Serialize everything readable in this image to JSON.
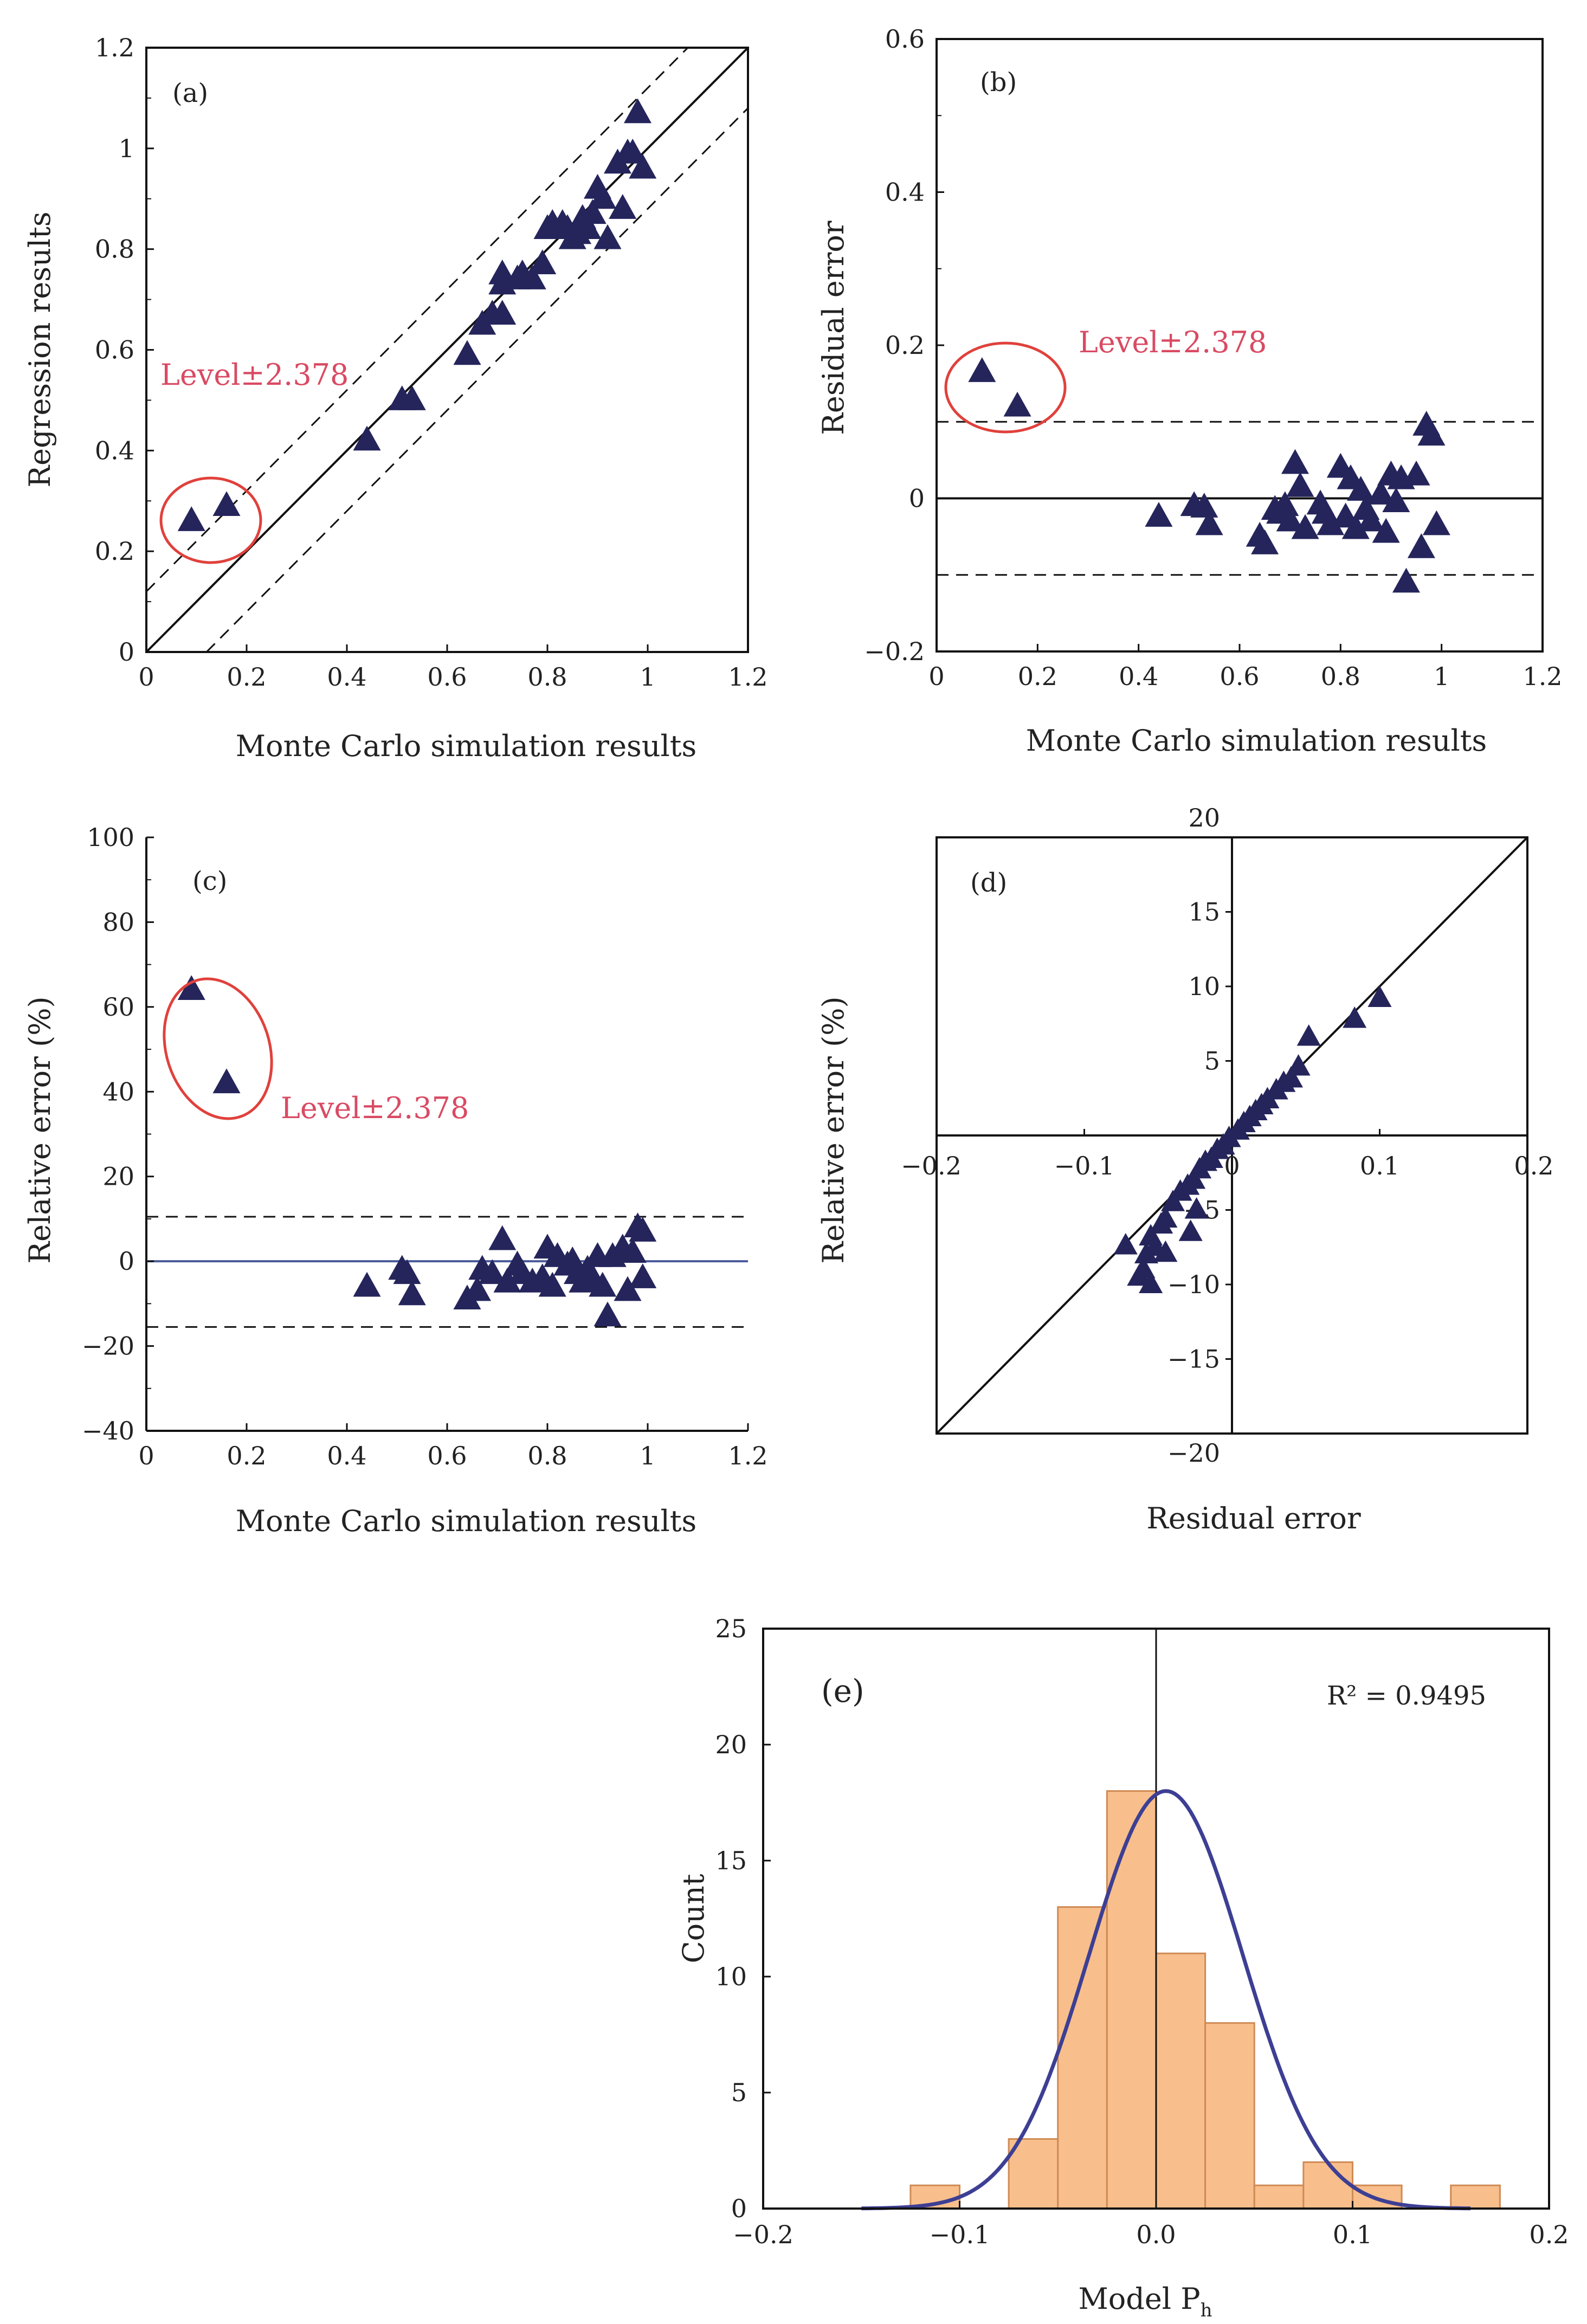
{
  "chart_data": [
    {
      "panel": "(a)",
      "type": "scatter",
      "xlabel": "Monte Carlo simulation results",
      "ylabel": "Regression results",
      "xlim": [
        0,
        1.2
      ],
      "ylim": [
        0,
        1.2
      ],
      "xticks": [
        "0",
        "0.2",
        "0.4",
        "0.6",
        "0.8",
        "1",
        "1.2"
      ],
      "yticks": [
        "0",
        "0.2",
        "0.4",
        "0.6",
        "0.8",
        "1",
        "1.2"
      ],
      "reference_lines": [
        {
          "style": "solid",
          "from": [
            0,
            0
          ],
          "to": [
            1.2,
            1.2
          ]
        },
        {
          "style": "dashed",
          "from": [
            0,
            0.12
          ],
          "to": [
            1.08,
            1.2
          ]
        },
        {
          "style": "dashed",
          "from": [
            0.12,
            0
          ],
          "to": [
            1.2,
            1.08
          ]
        }
      ],
      "annotation": "Level±2.378",
      "points": [
        [
          0.09,
          0.26
        ],
        [
          0.16,
          0.29
        ],
        [
          0.44,
          0.42
        ],
        [
          0.51,
          0.5
        ],
        [
          0.53,
          0.5
        ],
        [
          0.64,
          0.59
        ],
        [
          0.67,
          0.65
        ],
        [
          0.69,
          0.67
        ],
        [
          0.71,
          0.67
        ],
        [
          0.71,
          0.73
        ],
        [
          0.71,
          0.75
        ],
        [
          0.74,
          0.74
        ],
        [
          0.75,
          0.75
        ],
        [
          0.77,
          0.74
        ],
        [
          0.79,
          0.77
        ],
        [
          0.8,
          0.84
        ],
        [
          0.81,
          0.85
        ],
        [
          0.83,
          0.85
        ],
        [
          0.84,
          0.84
        ],
        [
          0.85,
          0.82
        ],
        [
          0.86,
          0.83
        ],
        [
          0.87,
          0.86
        ],
        [
          0.88,
          0.84
        ],
        [
          0.89,
          0.87
        ],
        [
          0.9,
          0.92
        ],
        [
          0.91,
          0.9
        ],
        [
          0.92,
          0.82
        ],
        [
          0.94,
          0.97
        ],
        [
          0.95,
          0.88
        ],
        [
          0.96,
          0.99
        ],
        [
          0.97,
          0.99
        ],
        [
          0.98,
          1.07
        ],
        [
          0.99,
          0.96
        ]
      ]
    },
    {
      "panel": "(b)",
      "type": "scatter",
      "xlabel": "Monte Carlo simulation results",
      "ylabel": "Residual error",
      "xlim": [
        0,
        1.2
      ],
      "ylim": [
        -0.2,
        0.6
      ],
      "xticks": [
        "0",
        "0.2",
        "0.4",
        "0.6",
        "0.8",
        "1",
        "1.2"
      ],
      "yticks": [
        "−0.2",
        "0",
        "0.2",
        "0.4",
        "0.6"
      ],
      "reference_lines": [
        {
          "style": "solid",
          "y": 0
        },
        {
          "style": "dashed",
          "y": 0.1
        },
        {
          "style": "dashed",
          "y": -0.1
        }
      ],
      "annotation": "Level±2.378",
      "points": [
        [
          0.09,
          0.165
        ],
        [
          0.16,
          0.12
        ],
        [
          0.44,
          -0.024
        ],
        [
          0.51,
          -0.01
        ],
        [
          0.53,
          -0.012
        ],
        [
          0.54,
          -0.035
        ],
        [
          0.64,
          -0.05
        ],
        [
          0.65,
          -0.06
        ],
        [
          0.67,
          -0.015
        ],
        [
          0.68,
          -0.02
        ],
        [
          0.69,
          -0.01
        ],
        [
          0.7,
          -0.03
        ],
        [
          0.71,
          0.045
        ],
        [
          0.72,
          0.015
        ],
        [
          0.73,
          -0.04
        ],
        [
          0.76,
          -0.008
        ],
        [
          0.77,
          -0.02
        ],
        [
          0.78,
          -0.035
        ],
        [
          0.8,
          0.04
        ],
        [
          0.81,
          -0.025
        ],
        [
          0.82,
          0.025
        ],
        [
          0.83,
          -0.04
        ],
        [
          0.84,
          0.01
        ],
        [
          0.85,
          -0.015
        ],
        [
          0.86,
          -0.03
        ],
        [
          0.88,
          0.005
        ],
        [
          0.89,
          -0.045
        ],
        [
          0.9,
          0.03
        ],
        [
          0.91,
          -0.005
        ],
        [
          0.92,
          0.025
        ],
        [
          0.93,
          -0.11
        ],
        [
          0.95,
          0.03
        ],
        [
          0.96,
          -0.065
        ],
        [
          0.97,
          0.095
        ],
        [
          0.98,
          0.082
        ],
        [
          0.99,
          -0.035
        ]
      ]
    },
    {
      "panel": "(c)",
      "type": "scatter",
      "xlabel": "Monte Carlo simulation results",
      "ylabel": "Relative error (%)",
      "xlim": [
        0,
        1.2
      ],
      "ylim": [
        -40,
        100
      ],
      "xticks": [
        "0",
        "0.2",
        "0.4",
        "0.6",
        "0.8",
        "1",
        "1.2"
      ],
      "yticks": [
        "−40",
        "−20",
        "0",
        "20",
        "40",
        "60",
        "80",
        "100"
      ],
      "reference_lines": [
        {
          "style": "solid",
          "y": 0
        },
        {
          "style": "dashed",
          "y": 10.5
        },
        {
          "style": "dashed",
          "y": -15.5
        }
      ],
      "annotation": "Level±2.378",
      "points": [
        [
          0.09,
          64
        ],
        [
          0.16,
          42
        ],
        [
          0.44,
          -6
        ],
        [
          0.51,
          -2
        ],
        [
          0.52,
          -3
        ],
        [
          0.53,
          -8
        ],
        [
          0.64,
          -9
        ],
        [
          0.66,
          -7
        ],
        [
          0.67,
          -2
        ],
        [
          0.69,
          -3
        ],
        [
          0.71,
          5
        ],
        [
          0.72,
          -5
        ],
        [
          0.74,
          -1
        ],
        [
          0.75,
          -3
        ],
        [
          0.77,
          -5
        ],
        [
          0.79,
          -4
        ],
        [
          0.8,
          3
        ],
        [
          0.81,
          -6
        ],
        [
          0.82,
          1
        ],
        [
          0.84,
          -1
        ],
        [
          0.85,
          0
        ],
        [
          0.86,
          -3
        ],
        [
          0.87,
          -5
        ],
        [
          0.88,
          -2
        ],
        [
          0.89,
          -4
        ],
        [
          0.9,
          1
        ],
        [
          0.91,
          -6
        ],
        [
          0.92,
          -13
        ],
        [
          0.93,
          1
        ],
        [
          0.95,
          3
        ],
        [
          0.96,
          -7
        ],
        [
          0.97,
          2
        ],
        [
          0.98,
          8
        ],
        [
          0.99,
          7
        ],
        [
          0.99,
          -4
        ]
      ]
    },
    {
      "panel": "(d)",
      "type": "scatter",
      "xlabel": "Residual error",
      "ylabel": "Relative error (%)",
      "xlim": [
        -0.2,
        0.2
      ],
      "ylim": [
        -20,
        20
      ],
      "xticks": [
        "−0.2",
        "−0.1",
        "0",
        "0.1",
        "0.2"
      ],
      "yticks": [
        "−20",
        "−15",
        "−10",
        "−5",
        "5",
        "10",
        "15",
        "20"
      ],
      "reference_lines": [
        {
          "style": "solid",
          "from": [
            -0.2,
            -20
          ],
          "to": [
            0.2,
            20
          ]
        }
      ],
      "points": [
        [
          0.1,
          9.2
        ],
        [
          0.083,
          7.8
        ],
        [
          0.052,
          6.6
        ],
        [
          0.045,
          4.6
        ],
        [
          0.04,
          3.8
        ],
        [
          0.035,
          3.5
        ],
        [
          0.03,
          3.0
        ],
        [
          0.024,
          2.4
        ],
        [
          0.02,
          2.0
        ],
        [
          0.016,
          1.6
        ],
        [
          0.012,
          1.2
        ],
        [
          0.008,
          0.8
        ],
        [
          0.004,
          0.3
        ],
        [
          -0.002,
          -0.2
        ],
        [
          -0.006,
          -0.7
        ],
        [
          -0.01,
          -1.0
        ],
        [
          -0.014,
          -1.6
        ],
        [
          -0.018,
          -1.8
        ],
        [
          -0.022,
          -2.3
        ],
        [
          -0.026,
          -3.0
        ],
        [
          -0.03,
          -3.4
        ],
        [
          -0.024,
          -5.0
        ],
        [
          -0.028,
          -6.5
        ],
        [
          -0.035,
          -3.8
        ],
        [
          -0.04,
          -4.5
        ],
        [
          -0.045,
          -5.6
        ],
        [
          -0.048,
          -6.0
        ],
        [
          -0.052,
          -7.5
        ],
        [
          -0.055,
          -6.8
        ],
        [
          -0.058,
          -8.0
        ],
        [
          -0.06,
          -9.0
        ],
        [
          -0.063,
          -9.5
        ],
        [
          -0.055,
          -10.0
        ],
        [
          -0.072,
          -7.4
        ],
        [
          -0.045,
          -7.9
        ]
      ]
    },
    {
      "panel": "(e)",
      "type": "bar",
      "xlabel": "Model P",
      "xlabel_sub": "h",
      "ylabel": "Count",
      "xlim": [
        -0.2,
        0.2
      ],
      "ylim": [
        0,
        25
      ],
      "xticks": [
        "−0.2",
        "−0.1",
        "0.0",
        "0.1",
        "0.2"
      ],
      "yticks": [
        "0",
        "5",
        "10",
        "15",
        "20",
        "25"
      ],
      "annotation": "R² = 0.9495",
      "bin_width": 0.025,
      "bin_starts": [
        -0.125,
        -0.075,
        -0.05,
        -0.025,
        0.0,
        0.025,
        0.05,
        0.075,
        0.1,
        0.15
      ],
      "values": [
        1,
        3,
        13,
        18,
        11,
        8,
        1,
        2,
        1,
        1
      ],
      "vertical_line_x": 0,
      "fit_curve": {
        "type": "normal",
        "mean": 0.005,
        "sd": 0.0392,
        "peak": 18
      },
      "bar_color": "#f8bf8c",
      "bar_edge": "#cf8a55",
      "curve_color": "#3d3f94"
    }
  ],
  "colors": {
    "marker": "#25255c",
    "highlight": "#e0413c",
    "annotation_text": "#d94a63",
    "axis": "#111111",
    "zero_line_c": "#4a5a9a"
  }
}
